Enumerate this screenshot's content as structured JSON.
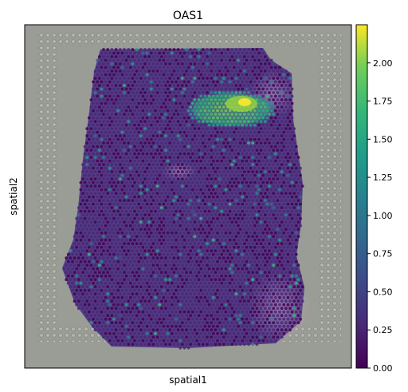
{
  "chart_data": {
    "type": "heatmap",
    "title": "OAS1",
    "xlabel": "spatial1",
    "ylabel": "spatial2",
    "x_ticks": [],
    "y_ticks": [],
    "colormap": "viridis",
    "colorbar": {
      "range": [
        0.0,
        2.25
      ],
      "ticks": [
        "0.00",
        "0.25",
        "0.50",
        "0.75",
        "1.00",
        "1.25",
        "1.50",
        "1.75",
        "2.00"
      ],
      "tick_values": [
        0.0,
        0.25,
        0.5,
        0.75,
        1.0,
        1.25,
        1.5,
        1.75,
        2.0
      ],
      "placement": "right"
    },
    "background": "H&E tissue image on gray slide with fiducial dot border",
    "hotspot": {
      "region": "upper-right of tissue",
      "max_value": 2.2
    },
    "typical_value": 0.3
  },
  "colors": {
    "slide_gray": "#9a9c96",
    "tissue_base": "#5a3f86",
    "tissue_pink": "#b49abf"
  }
}
